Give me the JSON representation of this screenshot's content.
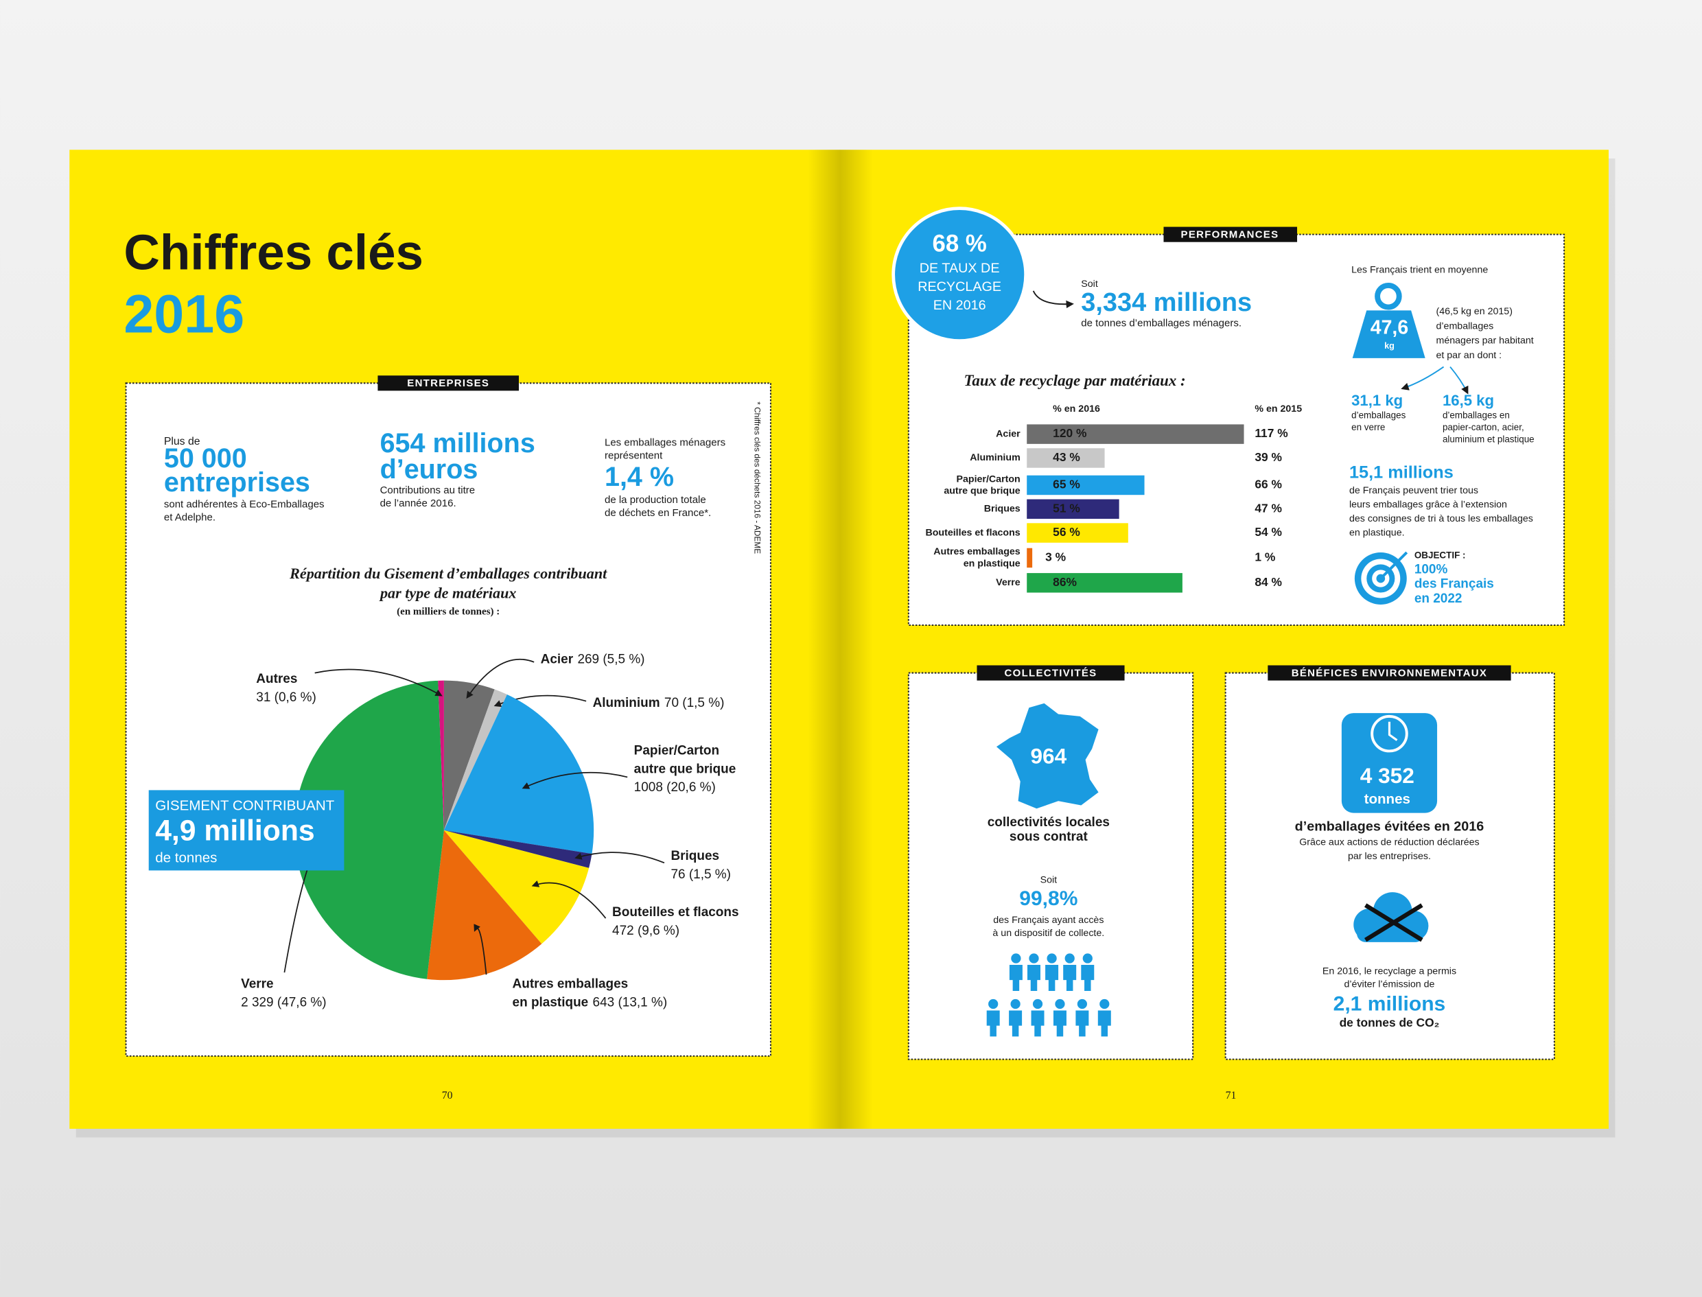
{
  "title": "Chiffres clés",
  "year": "2016",
  "entreprises": {
    "tab": "ENTREPRISES",
    "stat1": {
      "pre": "Plus de",
      "value": "50 000",
      "unit": "entreprises",
      "text": "sont adhérentes à Eco-Emballages\net Adelphe."
    },
    "stat2": {
      "value": "654 millions",
      "unit": "d’euros",
      "text": "Contributions au titre\nde l’année 2016."
    },
    "stat3": {
      "pre": "Les emballages ménagers\nreprésentent",
      "value": "1,4 %",
      "text": "de la production totale\nde déchets en France*."
    },
    "source": "* Chiffres clés des déchets 2016 - ADEME",
    "callout": {
      "pre": "GISEMENT CONTRIBUANT",
      "value": "4,9 millions",
      "unit": "de tonnes"
    }
  },
  "chart_data": [
    {
      "type": "pie",
      "title": "Répartition du Gisement d’emballages contribuant\npar type de matériaux",
      "subtitle": "(en milliers de tonnes) :",
      "categories": [
        "Acier",
        "Aluminium",
        "Papier/Carton\nautre que brique",
        "Briques",
        "Bouteilles et flacons",
        "Autres emballages\nen plastique",
        "Verre",
        "Autres"
      ],
      "values": [
        269,
        70,
        1008,
        76,
        472,
        643,
        2329,
        31
      ],
      "value_labels": [
        "269 (5,5 %)",
        "70 (1,5 %)",
        "1008 (20,6 %)",
        "76 (1,5 %)",
        "472 (9,6 %)",
        "643 (13,1 %)",
        "2 329 (47,6 %)",
        "31 (0,6 %)"
      ],
      "colors": [
        "#6e6e6e",
        "#c4c4c4",
        "#1ea0e6",
        "#2e2a7a",
        "#ffe800",
        "#ec6a0c",
        "#1fa64a",
        "#d6157f"
      ]
    },
    {
      "type": "bar",
      "title": "Taux de recyclage par matériaux :",
      "categories": [
        "Acier",
        "Aluminium",
        "Papier/Carton\nautre que brique",
        "Briques",
        "Bouteilles et flacons",
        "Autres emballages\nen plastique",
        "Verre"
      ],
      "xlim": [
        0,
        120
      ],
      "series": [
        {
          "name": "% en 2016",
          "colors": [
            "#6e6e6e",
            "#c8c8c8",
            "#1ea0e6",
            "#2e2a7a",
            "#ffe800",
            "#ec6a0c",
            "#1fa64a"
          ],
          "values": [
            120,
            43,
            65,
            51,
            56,
            3,
            86
          ],
          "value_labels": [
            "120 %",
            "43 %",
            "65 %",
            "51 %",
            "56 %",
            "3 %",
            "86%"
          ]
        },
        {
          "name": "% en 2015",
          "colors": [
            "#6e6e6e",
            "#c8c8c8",
            "#1ea0e6",
            "#2e2a7a",
            "#ffe800",
            "#ec6a0c",
            "#1fa64a"
          ],
          "values": [
            117,
            39,
            66,
            47,
            54,
            1,
            84
          ],
          "value_labels": [
            "117 %",
            "39 %",
            "66 %",
            "47 %",
            "54 %",
            "1 %",
            "84 %"
          ]
        }
      ]
    }
  ],
  "performances": {
    "tab": "PERFORMANCES",
    "badge": {
      "value": "68 %",
      "text": "DE TAUX DE\nRECYCLAGE\nEN 2016"
    },
    "soit": "Soit",
    "tonnage": "3,334 millions",
    "tonnage_text": "de tonnes d’emballages ménagers.",
    "trient": "Les Français trient en moyenne",
    "weight": "47,6",
    "weight_unit": "kg",
    "weight_text": "(46,5 kg en 2015)\nd’emballages\nménagers par habitant\net par an dont :",
    "verre": {
      "value": "31,1 kg",
      "text": "d’emballages\nen verre"
    },
    "autres": {
      "value": "16,5 kg",
      "text": "d’emballages en\npapier-carton, acier,\naluminium et plastique"
    },
    "extension": {
      "value": "15,1 millions",
      "text": "de Français peuvent trier tous\nleurs emballages grâce à l’extension\ndes consignes de tri à tous les emballages\nen plastique."
    },
    "objectif": {
      "pre": "OBJECTIF :",
      "text": "100%\ndes Français\nen 2022"
    }
  },
  "collectivites": {
    "tab": "COLLECTIVITÉS",
    "value": "964",
    "text": "collectivités locales\nsous contrat",
    "soit": "Soit",
    "share": "99,8%",
    "share_text": "des Français ayant accès\nà un dispositif de collecte."
  },
  "benefices": {
    "tab": "BÉNÉFICES ENVIRONNEMENTAUX",
    "value": "4 352",
    "unit": "tonnes",
    "headline": "d’emballages évitées en 2016",
    "text": "Grâce aux actions de réduction déclarées\npar les entreprises.",
    "co2_text": "En 2016, le recyclage a permis\nd’éviter l’émission de",
    "co2_value": "2,1 millions",
    "co2_unit": "de tonnes de CO₂"
  },
  "page_numbers": [
    "70",
    "71"
  ]
}
